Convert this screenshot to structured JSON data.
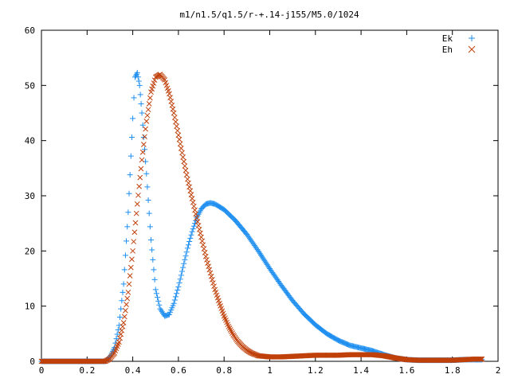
{
  "chart_data": {
    "type": "scatter",
    "title": "m1/n1.5/q1.5/r-+.14-j155/M5.0/1024",
    "xlabel": "",
    "ylabel": "",
    "xlim": [
      0,
      2
    ],
    "ylim": [
      0,
      60
    ],
    "x_ticks": [
      0,
      0.2,
      0.4,
      0.6,
      0.8,
      1,
      1.2,
      1.4,
      1.6,
      1.8,
      2
    ],
    "x_tick_labels": [
      "0",
      "0.2",
      "0.4",
      "0.6",
      "0.8",
      "1",
      "1.2",
      "1.4",
      "1.6",
      "1.8",
      "2"
    ],
    "y_ticks": [
      0,
      10,
      20,
      30,
      40,
      50,
      60
    ],
    "y_tick_labels": [
      "0",
      "10",
      "20",
      "30",
      "40",
      "50",
      "60"
    ],
    "grid": false,
    "legend_position": "top-right",
    "series": [
      {
        "name": "Ek",
        "marker": "plus",
        "color": "#1f8ff0",
        "points": [
          [
            0.0,
            0.0
          ],
          [
            0.28,
            0.0
          ],
          [
            0.3,
            0.8
          ],
          [
            0.32,
            2.5
          ],
          [
            0.34,
            6.5
          ],
          [
            0.36,
            14.0
          ],
          [
            0.38,
            27.0
          ],
          [
            0.4,
            44.0
          ],
          [
            0.41,
            51.5
          ],
          [
            0.42,
            52.3
          ],
          [
            0.43,
            50.0
          ],
          [
            0.44,
            45.0
          ],
          [
            0.46,
            34.0
          ],
          [
            0.48,
            22.0
          ],
          [
            0.5,
            13.0
          ],
          [
            0.52,
            9.5
          ],
          [
            0.54,
            8.2
          ],
          [
            0.56,
            8.5
          ],
          [
            0.58,
            10.5
          ],
          [
            0.6,
            13.5
          ],
          [
            0.62,
            17.0
          ],
          [
            0.64,
            20.5
          ],
          [
            0.66,
            23.5
          ],
          [
            0.68,
            26.0
          ],
          [
            0.7,
            27.6
          ],
          [
            0.72,
            28.5
          ],
          [
            0.74,
            28.7
          ],
          [
            0.76,
            28.5
          ],
          [
            0.8,
            27.5
          ],
          [
            0.85,
            25.5
          ],
          [
            0.9,
            23.0
          ],
          [
            0.95,
            20.0
          ],
          [
            1.0,
            16.8
          ],
          [
            1.05,
            13.8
          ],
          [
            1.1,
            11.0
          ],
          [
            1.15,
            8.6
          ],
          [
            1.2,
            6.6
          ],
          [
            1.25,
            5.0
          ],
          [
            1.3,
            3.8
          ],
          [
            1.35,
            2.9
          ],
          [
            1.4,
            2.4
          ],
          [
            1.45,
            1.9
          ],
          [
            1.5,
            1.2
          ],
          [
            1.55,
            0.6
          ],
          [
            1.6,
            0.3
          ],
          [
            1.65,
            0.2
          ],
          [
            1.7,
            0.2
          ],
          [
            1.75,
            0.2
          ],
          [
            1.8,
            0.2
          ],
          [
            1.85,
            0.3
          ],
          [
            1.9,
            0.3
          ],
          [
            1.93,
            0.3
          ]
        ]
      },
      {
        "name": "Eh",
        "marker": "cross",
        "color": "#c0400a",
        "points": [
          [
            0.0,
            0.0
          ],
          [
            0.28,
            0.0
          ],
          [
            0.3,
            0.5
          ],
          [
            0.32,
            1.5
          ],
          [
            0.34,
            3.5
          ],
          [
            0.36,
            7.0
          ],
          [
            0.38,
            12.5
          ],
          [
            0.4,
            20.0
          ],
          [
            0.42,
            28.5
          ],
          [
            0.44,
            36.5
          ],
          [
            0.46,
            43.5
          ],
          [
            0.48,
            48.8
          ],
          [
            0.5,
            51.5
          ],
          [
            0.52,
            52.0
          ],
          [
            0.54,
            51.0
          ],
          [
            0.56,
            48.5
          ],
          [
            0.58,
            45.0
          ],
          [
            0.6,
            41.0
          ],
          [
            0.62,
            37.0
          ],
          [
            0.64,
            33.0
          ],
          [
            0.66,
            29.5
          ],
          [
            0.68,
            26.0
          ],
          [
            0.7,
            22.5
          ],
          [
            0.72,
            19.0
          ],
          [
            0.74,
            16.0
          ],
          [
            0.76,
            13.0
          ],
          [
            0.78,
            10.5
          ],
          [
            0.8,
            8.2
          ],
          [
            0.82,
            6.3
          ],
          [
            0.84,
            4.8
          ],
          [
            0.86,
            3.6
          ],
          [
            0.88,
            2.7
          ],
          [
            0.9,
            2.0
          ],
          [
            0.92,
            1.5
          ],
          [
            0.95,
            1.0
          ],
          [
            1.0,
            0.8
          ],
          [
            1.05,
            0.8
          ],
          [
            1.1,
            0.9
          ],
          [
            1.15,
            1.0
          ],
          [
            1.2,
            1.1
          ],
          [
            1.25,
            1.1
          ],
          [
            1.3,
            1.1
          ],
          [
            1.35,
            1.2
          ],
          [
            1.4,
            1.2
          ],
          [
            1.45,
            1.2
          ],
          [
            1.5,
            1.0
          ],
          [
            1.55,
            0.6
          ],
          [
            1.6,
            0.3
          ],
          [
            1.65,
            0.2
          ],
          [
            1.7,
            0.2
          ],
          [
            1.75,
            0.2
          ],
          [
            1.8,
            0.2
          ],
          [
            1.85,
            0.3
          ],
          [
            1.9,
            0.4
          ],
          [
            1.93,
            0.4
          ]
        ]
      }
    ]
  }
}
